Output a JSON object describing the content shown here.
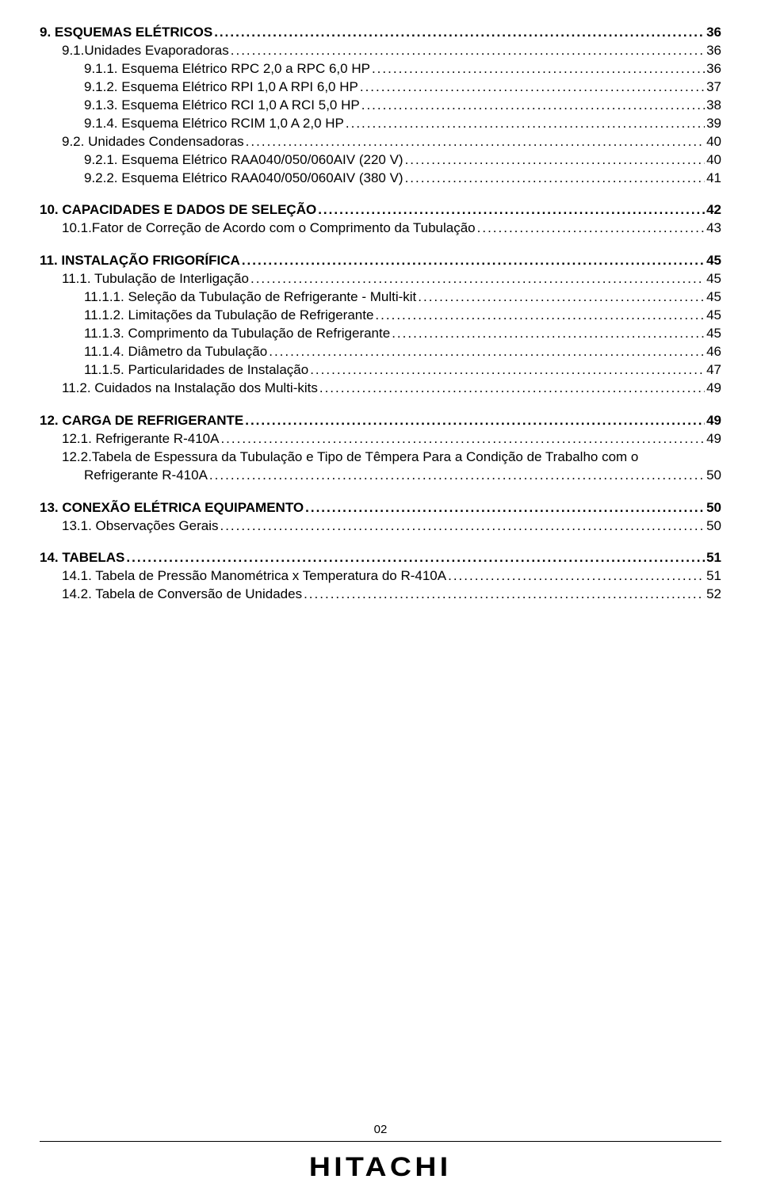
{
  "toc": [
    {
      "type": "row",
      "bold": true,
      "indent": 0,
      "text": "9. ESQUEMAS ELÉTRICOS",
      "page": "36"
    },
    {
      "type": "row",
      "bold": false,
      "indent": 1,
      "text": "9.1.Unidades Evaporadoras",
      "page": "36"
    },
    {
      "type": "row",
      "bold": false,
      "indent": 2,
      "text": "9.1.1. Esquema Elétrico RPC 2,0 a RPC 6,0 HP",
      "page": "36"
    },
    {
      "type": "row",
      "bold": false,
      "indent": 2,
      "text": "9.1.2. Esquema Elétrico RPI 1,0 A RPI 6,0 HP",
      "page": "37"
    },
    {
      "type": "row",
      "bold": false,
      "indent": 2,
      "text": "9.1.3. Esquema Elétrico RCI 1,0 A RCI 5,0 HP",
      "page": "38"
    },
    {
      "type": "row",
      "bold": false,
      "indent": 2,
      "text": "9.1.4. Esquema Elétrico RCIM 1,0 A 2,0 HP",
      "page": "39"
    },
    {
      "type": "row",
      "bold": false,
      "indent": 1,
      "text": "9.2. Unidades Condensadoras",
      "page": "40"
    },
    {
      "type": "row",
      "bold": false,
      "indent": 2,
      "text": "9.2.1. Esquema Elétrico RAA040/050/060AIV (220 V)",
      "page": "40"
    },
    {
      "type": "row",
      "bold": false,
      "indent": 2,
      "text": "9.2.2. Esquema Elétrico RAA040/050/060AIV (380 V)",
      "page": "41"
    },
    {
      "type": "gap"
    },
    {
      "type": "row",
      "bold": true,
      "indent": 0,
      "text": "10. CAPACIDADES E DADOS DE SELEÇÃO",
      "page": " 42"
    },
    {
      "type": "row",
      "bold": false,
      "indent": 1,
      "text": "10.1.Fator de Correção de Acordo com o Comprimento da Tubulação",
      "page": "43"
    },
    {
      "type": "gap"
    },
    {
      "type": "row",
      "bold": true,
      "indent": 0,
      "text": "11. INSTALAÇÃO FRIGORÍFICA",
      "page": "45"
    },
    {
      "type": "row",
      "bold": false,
      "indent": 1,
      "text": "11.1. Tubulação de Interligação",
      "page": "45"
    },
    {
      "type": "row",
      "bold": false,
      "indent": 2,
      "text": "11.1.1. Seleção da Tubulação de Refrigerante - Multi-kit",
      "page": "45"
    },
    {
      "type": "row",
      "bold": false,
      "indent": 2,
      "text": "11.1.2. Limitações da Tubulação de Refrigerante",
      "page": "45"
    },
    {
      "type": "row",
      "bold": false,
      "indent": 2,
      "text": "11.1.3. Comprimento da Tubulação de Refrigerante",
      "page": "45"
    },
    {
      "type": "row",
      "bold": false,
      "indent": 2,
      "text": "11.1.4. Diâmetro da Tubulação",
      "page": "46"
    },
    {
      "type": "row",
      "bold": false,
      "indent": 2,
      "text": "11.1.5. Particularidades de Instalação",
      "page": "47"
    },
    {
      "type": "row",
      "bold": false,
      "indent": 1,
      "text": "11.2. Cuidados na Instalação dos Multi-kits",
      "page": "49"
    },
    {
      "type": "gap"
    },
    {
      "type": "row",
      "bold": true,
      "indent": 0,
      "text": "12. CARGA DE REFRIGERANTE",
      "page": " 49"
    },
    {
      "type": "row",
      "bold": false,
      "indent": 1,
      "text": "12.1. Refrigerante R-410A",
      "page": "49"
    },
    {
      "type": "wrap",
      "indent": 1,
      "text": "12.2.Tabela de Espessura da Tubulação e Tipo de Têmpera Para a Condição de Trabalho com o"
    },
    {
      "type": "row",
      "bold": false,
      "indent": 2,
      "text": "Refrigerante R-410A",
      "page": " 50"
    },
    {
      "type": "gap"
    },
    {
      "type": "row",
      "bold": true,
      "indent": 0,
      "text": "13. CONEXÃO ELÉTRICA EQUIPAMENTO",
      "page": " 50"
    },
    {
      "type": "row",
      "bold": false,
      "indent": 1,
      "text": "13.1. Observações Gerais",
      "page": " 50"
    },
    {
      "type": "gap"
    },
    {
      "type": "row",
      "bold": true,
      "indent": 0,
      "text": "14. TABELAS",
      "page": "51"
    },
    {
      "type": "row",
      "bold": false,
      "indent": 1,
      "text": "14.1. Tabela de Pressão Manométrica x Temperatura do R-410A",
      "page": "51"
    },
    {
      "type": "row",
      "bold": false,
      "indent": 1,
      "text": "14.2. Tabela de Conversão de Unidades",
      "page": "52"
    }
  ],
  "footer": {
    "page_number": "02",
    "brand": "HITACHI"
  }
}
